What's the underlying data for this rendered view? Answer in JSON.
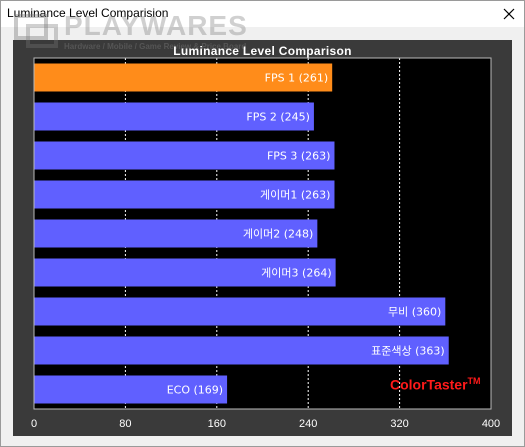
{
  "window": {
    "title": "Luminance Level Comparision"
  },
  "watermark": {
    "logo": "PLAYWARES",
    "tagline": "Hardware / Mobile / Game Review & Price Board"
  },
  "brand": {
    "name": "ColorTaster",
    "tm": "TM"
  },
  "colors": {
    "highlight": "#ff8c1a",
    "bar": "#6060ff",
    "background": "#000000",
    "grid": "#ffffff"
  },
  "chart_data": {
    "type": "bar",
    "orientation": "horizontal",
    "title": "Luminance Level Comparison",
    "categories": [
      "FPS 1",
      "FPS 2",
      "FPS 3",
      "게이머1",
      "게이머2",
      "게이머3",
      "무비",
      "표준색상",
      "ECO"
    ],
    "values": [
      261,
      245,
      263,
      263,
      248,
      264,
      360,
      363,
      169
    ],
    "labels": [
      "FPS 1 (261)",
      "FPS 2 (245)",
      "FPS 3 (263)",
      "게이머1 (263)",
      "게이머2 (248)",
      "게이머3 (264)",
      "무비 (360)",
      "표준색상 (363)",
      "ECO (169)"
    ],
    "highlight_index": 0,
    "xlim": [
      0,
      400
    ],
    "xticks": [
      0,
      80,
      160,
      240,
      320,
      400
    ],
    "xtick_labels": [
      "0",
      "80",
      "160",
      "240",
      "320",
      "400"
    ],
    "grid": true,
    "xlabel": "",
    "ylabel": ""
  }
}
